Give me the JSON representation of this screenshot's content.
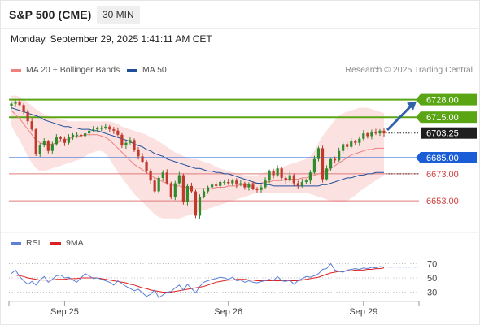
{
  "header": {
    "title": "S&P 500 (CME)",
    "timeframe": "30 MIN",
    "timestamp": "Monday, September 29, 2025 1:41:11 AM CET",
    "credit": "Research © 2025 Trading Central"
  },
  "legend": {
    "main": [
      {
        "label": "MA 20 + Bollinger Bands",
        "color": "#f08080"
      },
      {
        "label": "MA 50",
        "color": "#1f4e9a"
      }
    ],
    "rsi": [
      {
        "label": "RSI",
        "color": "#5b7fd6"
      },
      {
        "label": "9MA",
        "color": "#e02020"
      }
    ]
  },
  "colors": {
    "up": "#2e8b2e",
    "down": "#c0392b",
    "resistance": "#5aa514",
    "support": "#e07a7a",
    "pivot": "#1a5dd6",
    "bb_fill": "#f9c9c9",
    "arrow": "#2f62a8"
  },
  "chart_data": [
    {
      "type": "candlestick",
      "ylim": [
        6632,
        6738
      ],
      "x_ticks": [
        "Sep 25",
        "Sep 26",
        "Sep 29"
      ],
      "levels": [
        {
          "label": "6728.00",
          "value": 6728.0,
          "kind": "resistance"
        },
        {
          "label": "6715.00",
          "value": 6715.0,
          "kind": "resistance"
        },
        {
          "label": "6703.25",
          "value": 6703.25,
          "kind": "last"
        },
        {
          "label": "6685.00",
          "value": 6685.0,
          "kind": "pivot"
        },
        {
          "label": "6673.00",
          "value": 6673.0,
          "kind": "support"
        },
        {
          "label": "6653.00",
          "value": 6653.0,
          "kind": "support"
        }
      ],
      "close": [
        6725,
        6726,
        6724,
        6719,
        6712,
        6706,
        6688,
        6694,
        6697,
        6690,
        6695,
        6700,
        6699,
        6696,
        6700,
        6702,
        6702,
        6701,
        6703,
        6705,
        6706,
        6707,
        6707,
        6708,
        6706,
        6705,
        6702,
        6694,
        6696,
        6698,
        6691,
        6686,
        6682,
        6675,
        6668,
        6660,
        6670,
        6674,
        6666,
        6656,
        6666,
        6672,
        6652,
        6664,
        6660,
        6642,
        6656,
        6660,
        6663,
        6665,
        6664,
        6667,
        6667,
        6666,
        6668,
        6665,
        6666,
        6663,
        6665,
        6662,
        6661,
        6663,
        6668,
        6675,
        6672,
        6677,
        6670,
        6668,
        6672,
        6666,
        6664,
        6667,
        6668,
        6674,
        6684,
        6692,
        6669,
        6677,
        6684,
        6683,
        6690,
        6695,
        6693,
        6697,
        6696,
        6699,
        6703,
        6701,
        6704,
        6703,
        6705,
        6703
      ],
      "ma20": [
        6720,
        6717,
        6714,
        6710,
        6706,
        6702,
        6698,
        6696,
        6695,
        6695,
        6695,
        6696,
        6697,
        6698,
        6699,
        6700,
        6701,
        6701,
        6702,
        6702,
        6702,
        6702,
        6701,
        6700,
        6698,
        6695,
        6692,
        6689,
        6686,
        6683,
        6680,
        6678,
        6676,
        6674,
        6672,
        6670,
        6669,
        6667,
        6666,
        6665,
        6664,
        6664,
        6663,
        6663,
        6662,
        6662,
        6662,
        6662,
        6662,
        6662,
        6663,
        6663,
        6663,
        6664,
        6664,
        6664,
        6665,
        6665,
        6665,
        6666,
        6666,
        6666,
        6667,
        6667,
        6668,
        6668,
        6668,
        6669,
        6669,
        6669,
        6669,
        6670,
        6670,
        6671,
        6672,
        6673,
        6674,
        6675,
        6677,
        6679,
        6681,
        6683,
        6685,
        6687,
        6688,
        6689,
        6690,
        6691,
        6691,
        6692,
        6692,
        6692
      ],
      "ma50": [
        6722,
        6721,
        6720,
        6719,
        6718,
        6717,
        6716,
        6715,
        6713,
        6712,
        6711,
        6710,
        6709,
        6708,
        6708,
        6707,
        6707,
        6706,
        6706,
        6706,
        6705,
        6705,
        6704,
        6703,
        6702,
        6701,
        6700,
        6699,
        6698,
        6697,
        6695,
        6694,
        6693,
        6691,
        6690,
        6688,
        6687,
        6686,
        6684,
        6683,
        6682,
        6681,
        6680,
        6679,
        6678,
        6677,
        6677,
        6676,
        6675,
        6675,
        6674,
        6674,
        6673,
        6673,
        6672,
        6671,
        6670,
        6669,
        6668,
        6667,
        6666,
        6666,
        6665,
        6665,
        6664,
        6664,
        6664,
        6664,
        6664,
        6664,
        6664,
        6664,
        6664,
        6664,
        6664,
        6664,
        6665,
        6665,
        6666,
        6667,
        6668,
        6669,
        6670,
        6670,
        6671,
        6672,
        6672,
        6673,
        6673,
        6674,
        6674,
        6674
      ],
      "bb_upper": [
        6731,
        6731,
        6730,
        6728,
        6726,
        6723,
        6721,
        6719,
        6717,
        6716,
        6715,
        6714,
        6713,
        6713,
        6712,
        6712,
        6712,
        6712,
        6712,
        6712,
        6712,
        6712,
        6712,
        6712,
        6712,
        6711,
        6710,
        6708,
        6707,
        6706,
        6705,
        6704,
        6703,
        6702,
        6700,
        6699,
        6697,
        6695,
        6693,
        6691,
        6689,
        6688,
        6686,
        6685,
        6684,
        6684,
        6683,
        6682,
        6681,
        6680,
        6678,
        6677,
        6676,
        6675,
        6674,
        6673,
        6673,
        6672,
        6672,
        6672,
        6672,
        6673,
        6674,
        6675,
        6676,
        6677,
        6678,
        6679,
        6680,
        6681,
        6682,
        6683,
        6684,
        6686,
        6690,
        6696,
        6701,
        6705,
        6709,
        6713,
        6716,
        6718,
        6719,
        6720,
        6721,
        6722,
        6722,
        6722,
        6721,
        6720,
        6719,
        6718
      ],
      "bb_lower": [
        6709,
        6703,
        6698,
        6692,
        6686,
        6681,
        6677,
        6675,
        6675,
        6676,
        6677,
        6678,
        6679,
        6680,
        6681,
        6682,
        6683,
        6684,
        6686,
        6688,
        6689,
        6690,
        6690,
        6688,
        6684,
        6679,
        6674,
        6670,
        6666,
        6662,
        6658,
        6655,
        6652,
        6649,
        6646,
        6643,
        6641,
        6640,
        6640,
        6640,
        6640,
        6640,
        6641,
        6642,
        6643,
        6644,
        6645,
        6646,
        6647,
        6648,
        6649,
        6650,
        6651,
        6652,
        6653,
        6654,
        6655,
        6656,
        6657,
        6658,
        6659,
        6659,
        6659,
        6659,
        6659,
        6659,
        6659,
        6659,
        6659,
        6659,
        6659,
        6659,
        6659,
        6658,
        6657,
        6656,
        6655,
        6654,
        6653,
        6652,
        6652,
        6652,
        6653,
        6655,
        6657,
        6660,
        6662,
        6664,
        6666,
        6668,
        6670,
        6672
      ]
    },
    {
      "type": "line",
      "ylim": [
        18,
        82
      ],
      "y_ticks": [
        "70",
        "50",
        "30"
      ],
      "rsi": [
        56,
        61,
        52,
        46,
        41,
        45,
        40,
        47,
        52,
        44,
        48,
        53,
        54,
        50,
        51,
        47,
        44,
        50,
        56,
        53,
        49,
        50,
        48,
        46,
        44,
        40,
        46,
        42,
        38,
        35,
        32,
        34,
        29,
        24,
        27,
        33,
        22,
        26,
        30,
        31,
        36,
        40,
        33,
        41,
        35,
        29,
        38,
        44,
        46,
        48,
        49,
        51,
        50,
        48,
        51,
        46,
        47,
        44,
        46,
        44,
        43,
        45,
        46,
        48,
        46,
        52,
        46,
        45,
        47,
        41,
        46,
        49,
        52,
        51,
        53,
        56,
        62,
        63,
        70,
        61,
        59,
        58,
        61,
        62,
        63,
        62,
        64,
        63,
        65,
        64,
        66,
        65
      ],
      "ma9": [
        54,
        54,
        53,
        52,
        50,
        49,
        48,
        47,
        47,
        47,
        47,
        48,
        48,
        48,
        49,
        49,
        49,
        50,
        50,
        50,
        50,
        50,
        49,
        48,
        47,
        46,
        45,
        44,
        43,
        41,
        40,
        38,
        36,
        35,
        33,
        32,
        31,
        30,
        30,
        30,
        31,
        32,
        33,
        34,
        35,
        36,
        37,
        38,
        40,
        42,
        44,
        45,
        46,
        47,
        47,
        48,
        48,
        48,
        47,
        47,
        46,
        46,
        46,
        46,
        46,
        46,
        46,
        46,
        46,
        46,
        46,
        47,
        48,
        49,
        50,
        51,
        53,
        55,
        57,
        58,
        59,
        59,
        60,
        60,
        61,
        61,
        61,
        62,
        62,
        63,
        63,
        64
      ]
    }
  ]
}
